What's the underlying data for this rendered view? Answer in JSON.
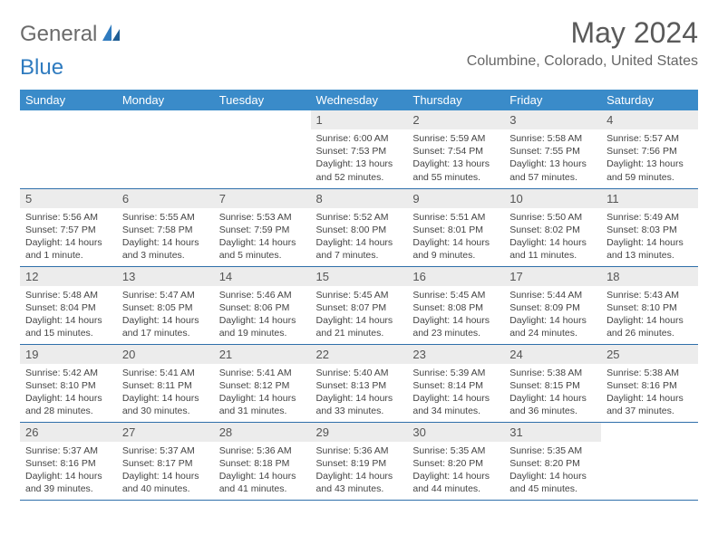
{
  "brand": {
    "part1": "General",
    "part2": "Blue"
  },
  "title": "May 2024",
  "location": "Columbine, Colorado, United States",
  "colors": {
    "header_bg": "#3a8bc9",
    "header_text": "#ffffff",
    "daynum_bg": "#ececec",
    "rule": "#2f6faa",
    "brand_gray": "#6b6b6b",
    "brand_blue": "#2f7bbf"
  },
  "day_headers": [
    "Sunday",
    "Monday",
    "Tuesday",
    "Wednesday",
    "Thursday",
    "Friday",
    "Saturday"
  ],
  "weeks": [
    [
      {
        "n": "",
        "lines": []
      },
      {
        "n": "",
        "lines": []
      },
      {
        "n": "",
        "lines": []
      },
      {
        "n": "1",
        "lines": [
          "Sunrise: 6:00 AM",
          "Sunset: 7:53 PM",
          "Daylight: 13 hours",
          "and 52 minutes."
        ]
      },
      {
        "n": "2",
        "lines": [
          "Sunrise: 5:59 AM",
          "Sunset: 7:54 PM",
          "Daylight: 13 hours",
          "and 55 minutes."
        ]
      },
      {
        "n": "3",
        "lines": [
          "Sunrise: 5:58 AM",
          "Sunset: 7:55 PM",
          "Daylight: 13 hours",
          "and 57 minutes."
        ]
      },
      {
        "n": "4",
        "lines": [
          "Sunrise: 5:57 AM",
          "Sunset: 7:56 PM",
          "Daylight: 13 hours",
          "and 59 minutes."
        ]
      }
    ],
    [
      {
        "n": "5",
        "lines": [
          "Sunrise: 5:56 AM",
          "Sunset: 7:57 PM",
          "Daylight: 14 hours",
          "and 1 minute."
        ]
      },
      {
        "n": "6",
        "lines": [
          "Sunrise: 5:55 AM",
          "Sunset: 7:58 PM",
          "Daylight: 14 hours",
          "and 3 minutes."
        ]
      },
      {
        "n": "7",
        "lines": [
          "Sunrise: 5:53 AM",
          "Sunset: 7:59 PM",
          "Daylight: 14 hours",
          "and 5 minutes."
        ]
      },
      {
        "n": "8",
        "lines": [
          "Sunrise: 5:52 AM",
          "Sunset: 8:00 PM",
          "Daylight: 14 hours",
          "and 7 minutes."
        ]
      },
      {
        "n": "9",
        "lines": [
          "Sunrise: 5:51 AM",
          "Sunset: 8:01 PM",
          "Daylight: 14 hours",
          "and 9 minutes."
        ]
      },
      {
        "n": "10",
        "lines": [
          "Sunrise: 5:50 AM",
          "Sunset: 8:02 PM",
          "Daylight: 14 hours",
          "and 11 minutes."
        ]
      },
      {
        "n": "11",
        "lines": [
          "Sunrise: 5:49 AM",
          "Sunset: 8:03 PM",
          "Daylight: 14 hours",
          "and 13 minutes."
        ]
      }
    ],
    [
      {
        "n": "12",
        "lines": [
          "Sunrise: 5:48 AM",
          "Sunset: 8:04 PM",
          "Daylight: 14 hours",
          "and 15 minutes."
        ]
      },
      {
        "n": "13",
        "lines": [
          "Sunrise: 5:47 AM",
          "Sunset: 8:05 PM",
          "Daylight: 14 hours",
          "and 17 minutes."
        ]
      },
      {
        "n": "14",
        "lines": [
          "Sunrise: 5:46 AM",
          "Sunset: 8:06 PM",
          "Daylight: 14 hours",
          "and 19 minutes."
        ]
      },
      {
        "n": "15",
        "lines": [
          "Sunrise: 5:45 AM",
          "Sunset: 8:07 PM",
          "Daylight: 14 hours",
          "and 21 minutes."
        ]
      },
      {
        "n": "16",
        "lines": [
          "Sunrise: 5:45 AM",
          "Sunset: 8:08 PM",
          "Daylight: 14 hours",
          "and 23 minutes."
        ]
      },
      {
        "n": "17",
        "lines": [
          "Sunrise: 5:44 AM",
          "Sunset: 8:09 PM",
          "Daylight: 14 hours",
          "and 24 minutes."
        ]
      },
      {
        "n": "18",
        "lines": [
          "Sunrise: 5:43 AM",
          "Sunset: 8:10 PM",
          "Daylight: 14 hours",
          "and 26 minutes."
        ]
      }
    ],
    [
      {
        "n": "19",
        "lines": [
          "Sunrise: 5:42 AM",
          "Sunset: 8:10 PM",
          "Daylight: 14 hours",
          "and 28 minutes."
        ]
      },
      {
        "n": "20",
        "lines": [
          "Sunrise: 5:41 AM",
          "Sunset: 8:11 PM",
          "Daylight: 14 hours",
          "and 30 minutes."
        ]
      },
      {
        "n": "21",
        "lines": [
          "Sunrise: 5:41 AM",
          "Sunset: 8:12 PM",
          "Daylight: 14 hours",
          "and 31 minutes."
        ]
      },
      {
        "n": "22",
        "lines": [
          "Sunrise: 5:40 AM",
          "Sunset: 8:13 PM",
          "Daylight: 14 hours",
          "and 33 minutes."
        ]
      },
      {
        "n": "23",
        "lines": [
          "Sunrise: 5:39 AM",
          "Sunset: 8:14 PM",
          "Daylight: 14 hours",
          "and 34 minutes."
        ]
      },
      {
        "n": "24",
        "lines": [
          "Sunrise: 5:38 AM",
          "Sunset: 8:15 PM",
          "Daylight: 14 hours",
          "and 36 minutes."
        ]
      },
      {
        "n": "25",
        "lines": [
          "Sunrise: 5:38 AM",
          "Sunset: 8:16 PM",
          "Daylight: 14 hours",
          "and 37 minutes."
        ]
      }
    ],
    [
      {
        "n": "26",
        "lines": [
          "Sunrise: 5:37 AM",
          "Sunset: 8:16 PM",
          "Daylight: 14 hours",
          "and 39 minutes."
        ]
      },
      {
        "n": "27",
        "lines": [
          "Sunrise: 5:37 AM",
          "Sunset: 8:17 PM",
          "Daylight: 14 hours",
          "and 40 minutes."
        ]
      },
      {
        "n": "28",
        "lines": [
          "Sunrise: 5:36 AM",
          "Sunset: 8:18 PM",
          "Daylight: 14 hours",
          "and 41 minutes."
        ]
      },
      {
        "n": "29",
        "lines": [
          "Sunrise: 5:36 AM",
          "Sunset: 8:19 PM",
          "Daylight: 14 hours",
          "and 43 minutes."
        ]
      },
      {
        "n": "30",
        "lines": [
          "Sunrise: 5:35 AM",
          "Sunset: 8:20 PM",
          "Daylight: 14 hours",
          "and 44 minutes."
        ]
      },
      {
        "n": "31",
        "lines": [
          "Sunrise: 5:35 AM",
          "Sunset: 8:20 PM",
          "Daylight: 14 hours",
          "and 45 minutes."
        ]
      },
      {
        "n": "",
        "lines": []
      }
    ]
  ]
}
